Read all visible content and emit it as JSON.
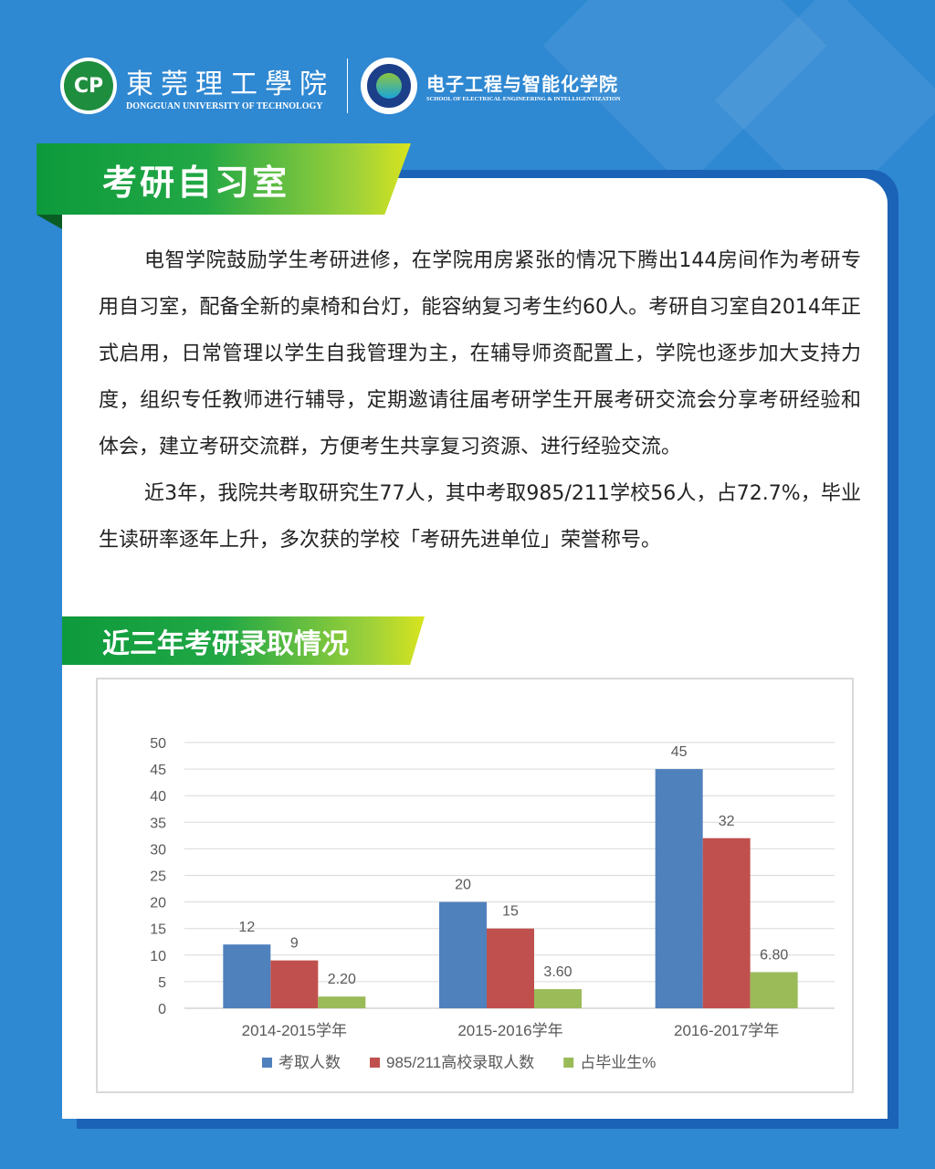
{
  "header": {
    "university_zh": "東莞理工學院",
    "university_en": "DONGGUAN UNIVERSITY OF TECHNOLOGY",
    "school_zh": "电子工程与智能化学院",
    "school_en": "SCHOOL OF ELECTRICAL ENGINEERING & INTELLIGENTIZATION"
  },
  "section1": {
    "title": "考研自习室",
    "paragraphs": [
      "电智学院鼓励学生考研进修，在学院用房紧张的情况下腾出144房间作为考研专用自习室，配备全新的桌椅和台灯，能容纳复习考生约60人。考研自习室自2014年正式启用，日常管理以学生自我管理为主，在辅导师资配置上，学院也逐步加大支持力度，组织专任教师进行辅导，定期邀请往届考研学生开展考研交流会分享考研经验和体会，建立考研交流群，方便考生共享复习资源、进行经验交流。",
      "近3年，我院共考取研究生77人，其中考取985/211学校56人，占72.7%，毕业生读研率逐年上升，多次获的学校「考研先进单位」荣誉称号。"
    ]
  },
  "section2": {
    "title": "近三年考研录取情况"
  },
  "chart_data": {
    "type": "bar",
    "categories": [
      "2014-2015学年",
      "2015-2016学年",
      "2016-2017学年"
    ],
    "series": [
      {
        "name": "考取人数",
        "values": [
          12,
          20,
          45
        ],
        "labels": [
          "12",
          "20",
          "45"
        ],
        "color": "#4f81bd"
      },
      {
        "name": "985/211高校录取人数",
        "values": [
          9,
          15,
          32
        ],
        "labels": [
          "9",
          "15",
          "32"
        ],
        "color": "#c0504d"
      },
      {
        "name": "占毕业生%",
        "values": [
          2.2,
          3.6,
          6.8
        ],
        "labels": [
          "2.20",
          "3.60",
          "6.80"
        ],
        "color": "#9bbb59"
      }
    ],
    "ylim": [
      0,
      50
    ],
    "yticks": [
      0,
      5,
      10,
      15,
      20,
      25,
      30,
      35,
      40,
      45,
      50
    ],
    "grid": true,
    "legend": "bottom"
  }
}
